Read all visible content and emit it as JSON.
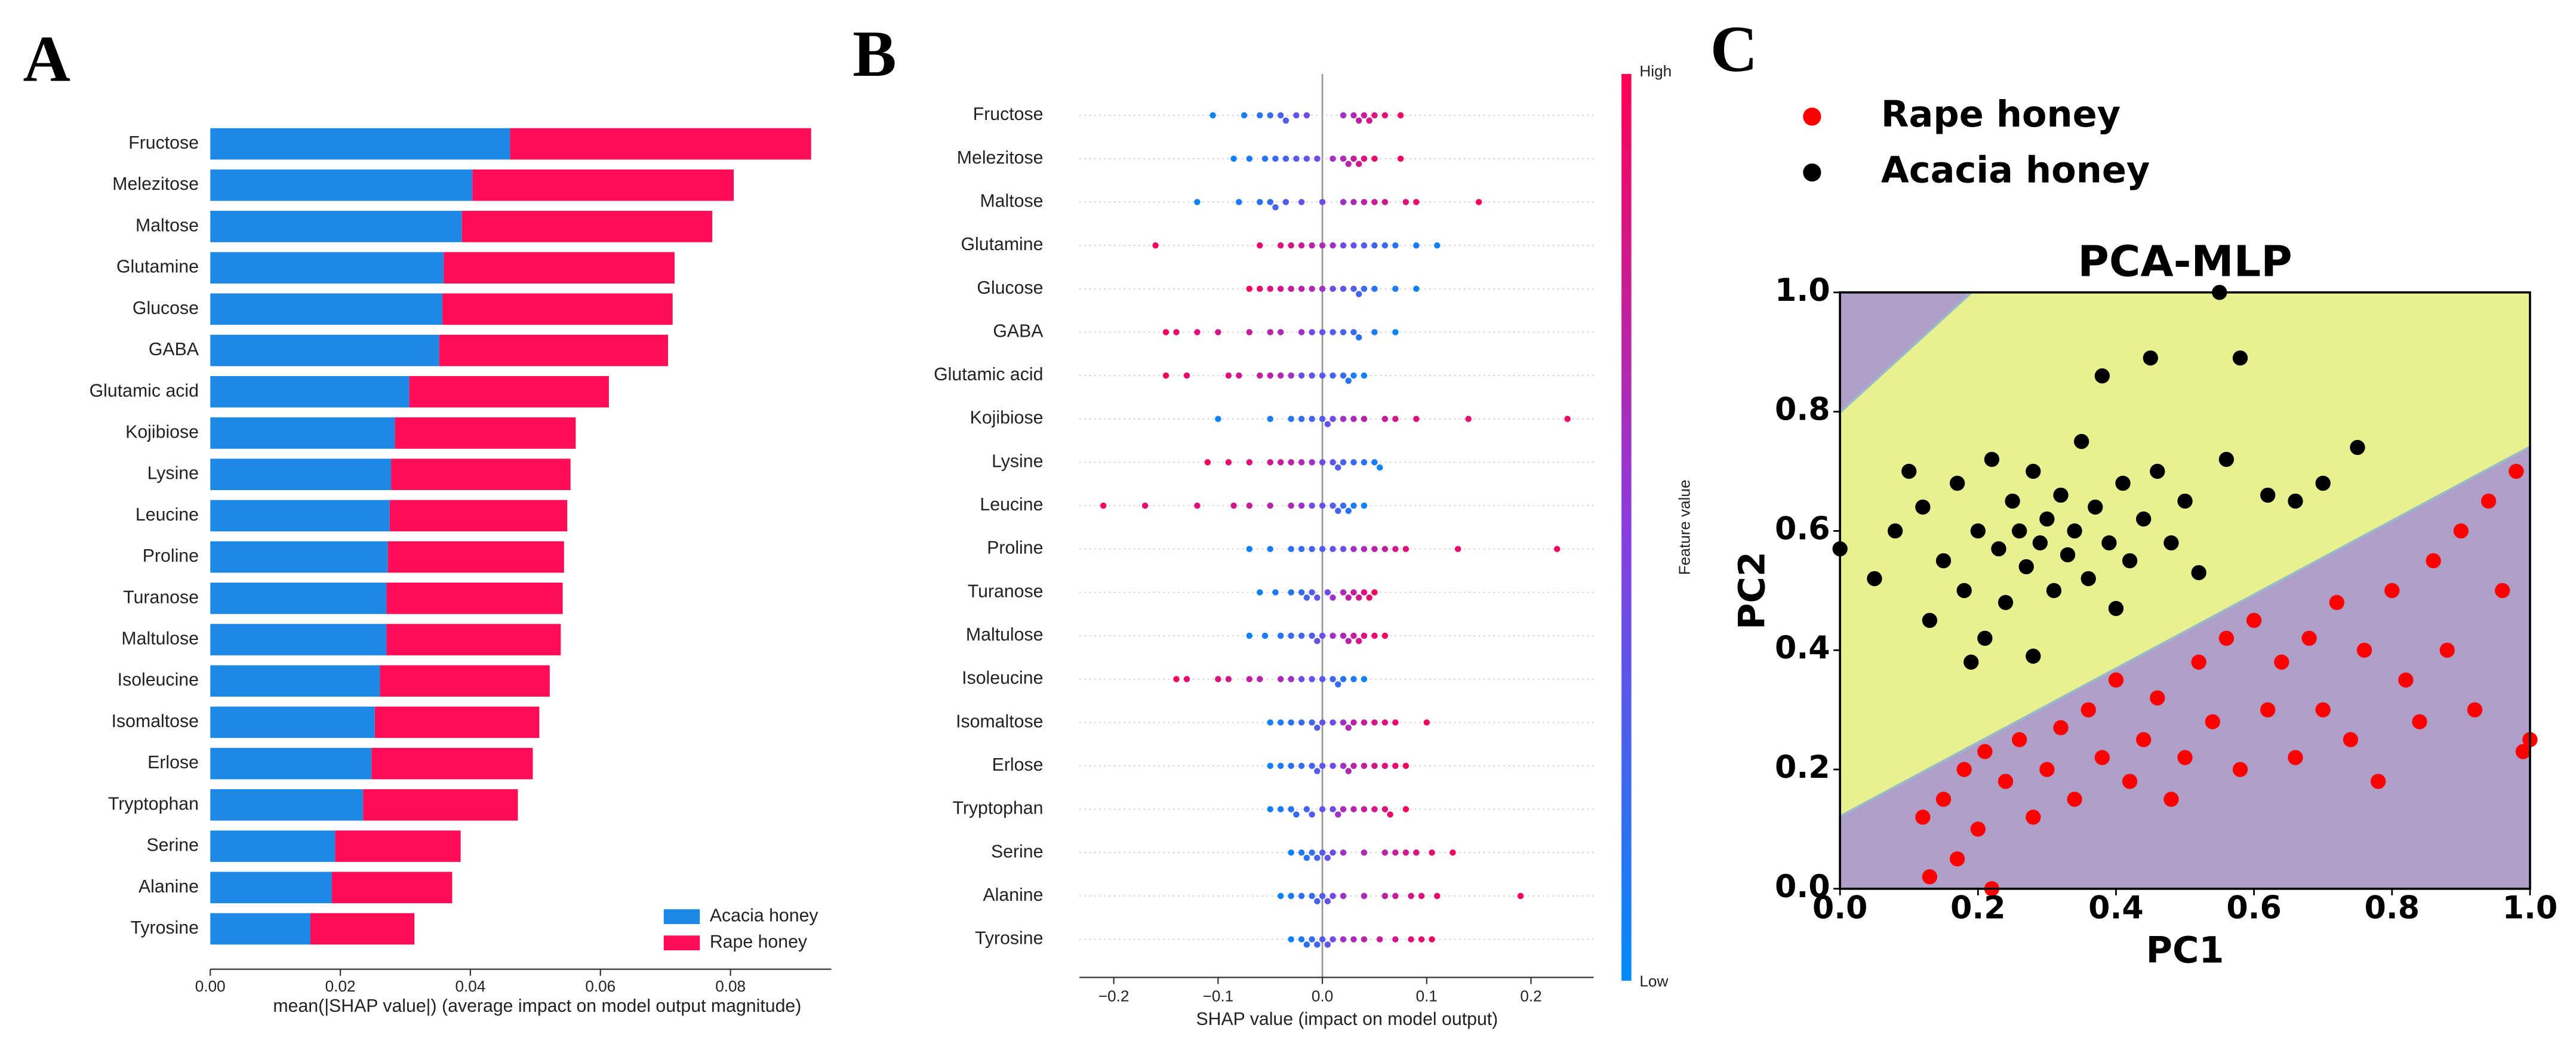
{
  "chart_data": [
    {
      "type": "bar",
      "panel_label": "A",
      "orientation": "horizontal",
      "stacked": true,
      "xlabel": "mean(|SHAP value|) (average impact on model output magnitude)",
      "categories": [
        "Fructose",
        "Melezitose",
        "Maltose",
        "Glutamine",
        "Glucose",
        "GABA",
        "Glutamic acid",
        "Kojibiose",
        "Lysine",
        "Leucine",
        "Proline",
        "Turanose",
        "Maltulose",
        "Isoleucine",
        "Isomaltose",
        "Erlose",
        "Tryptophan",
        "Serine",
        "Alanine",
        "Tyrosine"
      ],
      "series": [
        {
          "name": "Acacia honey",
          "color": "#1e88e5",
          "values": [
            0.0461,
            0.0403,
            0.0387,
            0.0359,
            0.0357,
            0.0352,
            0.0306,
            0.0284,
            0.0278,
            0.0276,
            0.0273,
            0.0271,
            0.0271,
            0.0261,
            0.0253,
            0.0248,
            0.0235,
            0.0192,
            0.0187,
            0.0154
          ]
        },
        {
          "name": "Rape honey",
          "color": "#ff0d57",
          "values": [
            0.0463,
            0.0402,
            0.0385,
            0.0355,
            0.0354,
            0.0352,
            0.0307,
            0.0278,
            0.0276,
            0.0273,
            0.0271,
            0.0271,
            0.0268,
            0.0261,
            0.0253,
            0.0248,
            0.0238,
            0.0193,
            0.0185,
            0.016
          ]
        }
      ],
      "xlim": [
        0,
        0.0955
      ],
      "xticks": [
        {
          "value": 0,
          "label": "0.00"
        },
        {
          "value": 0.02,
          "label": "0.02"
        },
        {
          "value": 0.04,
          "label": "0.04"
        },
        {
          "value": 0.06,
          "label": "0.06"
        },
        {
          "value": 0.08,
          "label": "0.08"
        }
      ],
      "legend": "lower right"
    },
    {
      "type": "swarm",
      "panel_label": "B",
      "xlabel": "SHAP value (impact on model output)",
      "colorbar_label": "Feature value",
      "colorbar_high": "High",
      "colorbar_low": "Low",
      "colormap": [
        "#008bfb",
        "#8a3ce0",
        "#ff0052"
      ],
      "categories": [
        "Fructose",
        "Melezitose",
        "Maltose",
        "Glutamine",
        "Glucose",
        "GABA",
        "Glutamic acid",
        "Kojibiose",
        "Lysine",
        "Leucine",
        "Proline",
        "Turanose",
        "Maltulose",
        "Isoleucine",
        "Isomaltose",
        "Erlose",
        "Tryptophan",
        "Serine",
        "Alanine",
        "Tyrosine"
      ],
      "shap_values": [
        [
          -0.105,
          -0.075,
          -0.06,
          -0.05,
          -0.04,
          -0.035,
          -0.025,
          -0.015,
          0.02,
          0.03,
          0.035,
          0.04,
          0.045,
          0.05,
          0.06,
          0.075
        ],
        [
          -0.085,
          -0.07,
          -0.055,
          -0.045,
          -0.035,
          -0.025,
          -0.015,
          -0.005,
          0.01,
          0.02,
          0.025,
          0.03,
          0.035,
          0.04,
          0.05,
          0.075
        ],
        [
          -0.12,
          -0.08,
          -0.06,
          -0.05,
          -0.045,
          -0.035,
          -0.02,
          0.0,
          0.02,
          0.03,
          0.04,
          0.05,
          0.06,
          0.08,
          0.09,
          0.15
        ],
        [
          -0.16,
          -0.06,
          -0.04,
          -0.03,
          -0.02,
          -0.01,
          0.0,
          0.01,
          0.02,
          0.03,
          0.04,
          0.05,
          0.06,
          0.07,
          0.09,
          0.11
        ],
        [
          -0.07,
          -0.06,
          -0.05,
          -0.04,
          -0.03,
          -0.02,
          -0.01,
          0.0,
          0.01,
          0.02,
          0.03,
          0.035,
          0.04,
          0.05,
          0.07,
          0.09
        ],
        [
          -0.15,
          -0.14,
          -0.12,
          -0.1,
          -0.07,
          -0.05,
          -0.04,
          -0.02,
          -0.01,
          0.0,
          0.01,
          0.02,
          0.03,
          0.035,
          0.05,
          0.07
        ],
        [
          -0.15,
          -0.13,
          -0.09,
          -0.08,
          -0.06,
          -0.05,
          -0.04,
          -0.03,
          -0.02,
          -0.01,
          0.0,
          0.01,
          0.02,
          0.025,
          0.03,
          0.04
        ],
        [
          -0.1,
          -0.05,
          -0.03,
          -0.02,
          -0.01,
          0.0,
          0.005,
          0.01,
          0.02,
          0.03,
          0.04,
          0.06,
          0.07,
          0.09,
          0.14,
          0.235
        ],
        [
          -0.11,
          -0.09,
          -0.07,
          -0.05,
          -0.04,
          -0.03,
          -0.02,
          -0.01,
          0.0,
          0.01,
          0.015,
          0.02,
          0.03,
          0.04,
          0.05,
          0.055
        ],
        [
          -0.21,
          -0.17,
          -0.12,
          -0.085,
          -0.07,
          -0.05,
          -0.03,
          -0.02,
          -0.01,
          0.0,
          0.01,
          0.015,
          0.02,
          0.025,
          0.03,
          0.04
        ],
        [
          -0.07,
          -0.05,
          -0.03,
          -0.02,
          -0.01,
          0.0,
          0.01,
          0.02,
          0.03,
          0.04,
          0.05,
          0.06,
          0.07,
          0.08,
          0.13,
          0.225
        ],
        [
          -0.06,
          -0.045,
          -0.03,
          -0.02,
          -0.015,
          -0.01,
          -0.005,
          0.005,
          0.01,
          0.02,
          0.025,
          0.03,
          0.035,
          0.04,
          0.045,
          0.05
        ],
        [
          -0.07,
          -0.055,
          -0.04,
          -0.03,
          -0.02,
          -0.01,
          -0.005,
          0.0,
          0.01,
          0.02,
          0.025,
          0.03,
          0.035,
          0.04,
          0.05,
          0.06
        ],
        [
          -0.14,
          -0.13,
          -0.1,
          -0.09,
          -0.07,
          -0.06,
          -0.04,
          -0.03,
          -0.02,
          -0.01,
          0.0,
          0.01,
          0.015,
          0.02,
          0.03,
          0.04
        ],
        [
          -0.05,
          -0.04,
          -0.03,
          -0.02,
          -0.01,
          -0.005,
          0.0,
          0.01,
          0.02,
          0.025,
          0.03,
          0.04,
          0.05,
          0.06,
          0.07,
          0.1
        ],
        [
          -0.05,
          -0.04,
          -0.03,
          -0.02,
          -0.01,
          -0.005,
          0.0,
          0.01,
          0.02,
          0.025,
          0.03,
          0.04,
          0.05,
          0.06,
          0.07,
          0.08
        ],
        [
          -0.05,
          -0.04,
          -0.03,
          -0.025,
          -0.015,
          -0.01,
          0.0,
          0.01,
          0.015,
          0.02,
          0.03,
          0.04,
          0.05,
          0.06,
          0.065,
          0.08
        ],
        [
          -0.03,
          -0.02,
          -0.015,
          -0.01,
          -0.005,
          0.0,
          0.005,
          0.01,
          0.02,
          0.04,
          0.06,
          0.07,
          0.08,
          0.09,
          0.105,
          0.125
        ],
        [
          -0.04,
          -0.03,
          -0.02,
          -0.01,
          -0.005,
          0.0,
          0.005,
          0.01,
          0.02,
          0.04,
          0.06,
          0.07,
          0.085,
          0.095,
          0.11,
          0.19
        ],
        [
          -0.03,
          -0.02,
          -0.015,
          -0.01,
          -0.005,
          0.0,
          0.005,
          0.01,
          0.02,
          0.03,
          0.04,
          0.055,
          0.07,
          0.085,
          0.095,
          0.105
        ]
      ],
      "feature_values": [
        [
          0.05,
          0.1,
          0.15,
          0.2,
          0.25,
          0.3,
          0.35,
          0.4,
          0.6,
          0.65,
          0.7,
          0.75,
          0.8,
          0.85,
          0.9,
          0.95
        ],
        [
          0.05,
          0.1,
          0.15,
          0.2,
          0.25,
          0.3,
          0.35,
          0.4,
          0.6,
          0.65,
          0.7,
          0.75,
          0.8,
          0.85,
          0.9,
          0.95
        ],
        [
          0.05,
          0.1,
          0.15,
          0.2,
          0.25,
          0.3,
          0.35,
          0.4,
          0.6,
          0.65,
          0.7,
          0.75,
          0.8,
          0.85,
          0.9,
          0.95
        ],
        [
          0.95,
          0.9,
          0.85,
          0.8,
          0.75,
          0.7,
          0.65,
          0.6,
          0.4,
          0.35,
          0.3,
          0.25,
          0.2,
          0.15,
          0.1,
          0.05
        ],
        [
          0.95,
          0.9,
          0.85,
          0.8,
          0.75,
          0.7,
          0.65,
          0.6,
          0.4,
          0.35,
          0.3,
          0.25,
          0.2,
          0.15,
          0.1,
          0.05
        ],
        [
          0.95,
          0.9,
          0.85,
          0.8,
          0.75,
          0.7,
          0.65,
          0.6,
          0.4,
          0.35,
          0.3,
          0.25,
          0.2,
          0.15,
          0.1,
          0.05
        ],
        [
          0.95,
          0.9,
          0.85,
          0.8,
          0.75,
          0.7,
          0.65,
          0.6,
          0.4,
          0.35,
          0.3,
          0.25,
          0.2,
          0.15,
          0.1,
          0.05
        ],
        [
          0.05,
          0.1,
          0.15,
          0.2,
          0.25,
          0.3,
          0.35,
          0.4,
          0.6,
          0.65,
          0.7,
          0.75,
          0.8,
          0.85,
          0.9,
          0.95
        ],
        [
          0.95,
          0.9,
          0.85,
          0.8,
          0.75,
          0.7,
          0.65,
          0.6,
          0.4,
          0.35,
          0.3,
          0.25,
          0.2,
          0.15,
          0.1,
          0.05
        ],
        [
          0.95,
          0.9,
          0.85,
          0.8,
          0.75,
          0.7,
          0.65,
          0.6,
          0.4,
          0.35,
          0.3,
          0.25,
          0.2,
          0.15,
          0.1,
          0.05
        ],
        [
          0.05,
          0.1,
          0.15,
          0.2,
          0.25,
          0.3,
          0.35,
          0.4,
          0.6,
          0.65,
          0.7,
          0.75,
          0.8,
          0.85,
          0.9,
          0.95
        ],
        [
          0.05,
          0.1,
          0.15,
          0.2,
          0.25,
          0.3,
          0.35,
          0.4,
          0.6,
          0.65,
          0.7,
          0.75,
          0.8,
          0.85,
          0.9,
          0.95
        ],
        [
          0.05,
          0.1,
          0.15,
          0.2,
          0.25,
          0.3,
          0.35,
          0.4,
          0.6,
          0.65,
          0.7,
          0.75,
          0.8,
          0.85,
          0.9,
          0.95
        ],
        [
          0.95,
          0.9,
          0.85,
          0.8,
          0.75,
          0.7,
          0.65,
          0.6,
          0.4,
          0.35,
          0.3,
          0.25,
          0.2,
          0.15,
          0.1,
          0.05
        ],
        [
          0.05,
          0.1,
          0.15,
          0.2,
          0.25,
          0.3,
          0.35,
          0.4,
          0.6,
          0.65,
          0.7,
          0.75,
          0.8,
          0.85,
          0.9,
          0.95
        ],
        [
          0.05,
          0.1,
          0.15,
          0.2,
          0.25,
          0.3,
          0.35,
          0.4,
          0.6,
          0.65,
          0.7,
          0.75,
          0.8,
          0.85,
          0.9,
          0.95
        ],
        [
          0.05,
          0.1,
          0.15,
          0.2,
          0.25,
          0.3,
          0.35,
          0.4,
          0.6,
          0.65,
          0.7,
          0.75,
          0.8,
          0.85,
          0.9,
          0.95
        ],
        [
          0.05,
          0.1,
          0.15,
          0.2,
          0.25,
          0.3,
          0.35,
          0.4,
          0.6,
          0.65,
          0.7,
          0.75,
          0.8,
          0.85,
          0.9,
          0.95
        ],
        [
          0.05,
          0.1,
          0.15,
          0.2,
          0.25,
          0.3,
          0.35,
          0.4,
          0.6,
          0.65,
          0.7,
          0.75,
          0.8,
          0.85,
          0.9,
          0.95
        ],
        [
          0.05,
          0.1,
          0.15,
          0.2,
          0.25,
          0.3,
          0.35,
          0.4,
          0.6,
          0.65,
          0.7,
          0.75,
          0.8,
          0.85,
          0.9,
          0.95
        ]
      ],
      "xlim": [
        -0.233,
        0.26
      ],
      "xticks": [
        {
          "value": -0.2,
          "label": "−0.2"
        },
        {
          "value": -0.1,
          "label": "−0.1"
        },
        {
          "value": 0,
          "label": "0.0"
        },
        {
          "value": 0.1,
          "label": "0.1"
        },
        {
          "value": 0.2,
          "label": "0.2"
        }
      ]
    },
    {
      "type": "scatter",
      "panel_label": "C",
      "title": "PCA-MLP",
      "xlabel": "PC1",
      "ylabel": "PC2",
      "series": [
        {
          "name": "Rape honey",
          "color": "#ff0000",
          "x": [
            0.12,
            0.13,
            0.15,
            0.17,
            0.18,
            0.2,
            0.21,
            0.22,
            0.24,
            0.26,
            0.28,
            0.3,
            0.32,
            0.34,
            0.36,
            0.38,
            0.4,
            0.42,
            0.44,
            0.46,
            0.48,
            0.5,
            0.52,
            0.54,
            0.56,
            0.58,
            0.6,
            0.62,
            0.64,
            0.66,
            0.68,
            0.7,
            0.72,
            0.74,
            0.76,
            0.78,
            0.8,
            0.82,
            0.84,
            0.86,
            0.88,
            0.9,
            0.92,
            0.94,
            0.96,
            0.98,
            1.0,
            0.99
          ],
          "y": [
            0.12,
            0.02,
            0.15,
            0.05,
            0.2,
            0.1,
            0.23,
            0.0,
            0.18,
            0.25,
            0.12,
            0.2,
            0.27,
            0.15,
            0.3,
            0.22,
            0.35,
            0.18,
            0.25,
            0.32,
            0.15,
            0.22,
            0.38,
            0.28,
            0.42,
            0.2,
            0.45,
            0.3,
            0.38,
            0.22,
            0.42,
            0.3,
            0.48,
            0.25,
            0.4,
            0.18,
            0.5,
            0.35,
            0.28,
            0.55,
            0.4,
            0.6,
            0.3,
            0.65,
            0.5,
            0.7,
            0.25,
            0.23
          ]
        },
        {
          "name": "Acacia honey",
          "color": "#000000",
          "x": [
            0.0,
            0.05,
            0.08,
            0.1,
            0.12,
            0.13,
            0.15,
            0.17,
            0.18,
            0.2,
            0.21,
            0.22,
            0.23,
            0.24,
            0.25,
            0.26,
            0.27,
            0.28,
            0.29,
            0.3,
            0.31,
            0.32,
            0.33,
            0.34,
            0.35,
            0.36,
            0.37,
            0.38,
            0.39,
            0.4,
            0.41,
            0.42,
            0.44,
            0.45,
            0.46,
            0.48,
            0.5,
            0.52,
            0.55,
            0.56,
            0.58,
            0.62,
            0.66,
            0.7,
            0.75,
            0.28,
            0.19
          ],
          "y": [
            0.57,
            0.52,
            0.6,
            0.7,
            0.64,
            0.45,
            0.55,
            0.68,
            0.5,
            0.6,
            0.42,
            0.72,
            0.57,
            0.48,
            0.65,
            0.6,
            0.54,
            0.7,
            0.58,
            0.62,
            0.5,
            0.66,
            0.56,
            0.6,
            0.75,
            0.52,
            0.64,
            0.86,
            0.58,
            0.47,
            0.68,
            0.55,
            0.62,
            0.89,
            0.7,
            0.58,
            0.65,
            0.53,
            1.0,
            0.72,
            0.89,
            0.66,
            0.65,
            0.68,
            0.74,
            0.39,
            0.38
          ]
        }
      ],
      "xlim": [
        0,
        1
      ],
      "ylim": [
        0,
        1
      ],
      "xticks": [
        {
          "value": 0,
          "label": "0.0"
        },
        {
          "value": 0.2,
          "label": "0.2"
        },
        {
          "value": 0.4,
          "label": "0.4"
        },
        {
          "value": 0.6,
          "label": "0.6"
        },
        {
          "value": 0.8,
          "label": "0.8"
        },
        {
          "value": 1,
          "label": "1.0"
        }
      ],
      "yticks": [
        {
          "value": 0,
          "label": "0.0"
        },
        {
          "value": 0.2,
          "label": "0.2"
        },
        {
          "value": 0.4,
          "label": "0.4"
        },
        {
          "value": 0.6,
          "label": "0.6"
        },
        {
          "value": 0.8,
          "label": "0.8"
        },
        {
          "value": 1,
          "label": "1.0"
        }
      ],
      "legend": "upper left"
    }
  ]
}
